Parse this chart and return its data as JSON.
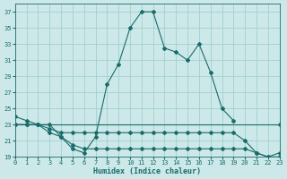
{
  "xlabel": "Humidex (Indice chaleur)",
  "bg_color": "#cce8e8",
  "grid_color": "#99cccc",
  "line_color": "#1a6b6b",
  "ylim": [
    19,
    38
  ],
  "yticks": [
    19,
    21,
    23,
    25,
    27,
    29,
    31,
    33,
    35,
    37
  ],
  "xlim": [
    0,
    23
  ],
  "xticks": [
    0,
    1,
    2,
    3,
    4,
    5,
    6,
    7,
    8,
    9,
    10,
    11,
    12,
    13,
    14,
    15,
    16,
    17,
    18,
    19,
    20,
    21,
    22,
    23
  ],
  "main_x": [
    0,
    1,
    2,
    3,
    4,
    5,
    6,
    7,
    8,
    9,
    10,
    11,
    12,
    13,
    14,
    15,
    16,
    17,
    18,
    19
  ],
  "main_y": [
    24,
    23.5,
    23,
    23,
    21.5,
    20,
    19.5,
    21.5,
    28,
    30.5,
    35,
    37,
    37,
    32.5,
    32,
    31,
    33,
    29.5,
    25,
    23.5
  ],
  "flat1_x": [
    0,
    1,
    2,
    3,
    4,
    5,
    6,
    7,
    8,
    9,
    10,
    11,
    12,
    13,
    14,
    15,
    16,
    17,
    18,
    19,
    20,
    21,
    22,
    23
  ],
  "flat1_y": [
    23,
    23,
    23,
    23,
    23,
    23,
    23,
    23,
    23,
    23,
    23,
    23,
    23,
    23,
    23,
    23,
    23,
    23,
    23,
    23,
    23,
    23,
    23,
    23
  ],
  "flat2_x": [
    0,
    1,
    2,
    3,
    4,
    5,
    6,
    7,
    8,
    9,
    10,
    11,
    12,
    13,
    14,
    15,
    16,
    17,
    18,
    19,
    20,
    21,
    22,
    23
  ],
  "flat2_y": [
    23,
    23,
    23,
    22.5,
    22,
    22,
    22,
    22,
    22,
    22,
    22,
    22,
    22,
    22,
    22,
    22,
    22,
    22,
    22,
    22,
    21,
    19.5,
    19,
    19
  ],
  "flat3_x": [
    0,
    1,
    2,
    3,
    4,
    5,
    6,
    7,
    8,
    9,
    10,
    11,
    12,
    13,
    14,
    15,
    16,
    17,
    18,
    19,
    20,
    21,
    22,
    23
  ],
  "flat3_y": [
    23,
    23,
    23,
    22,
    21.5,
    20.5,
    20,
    20,
    20,
    20,
    20,
    20,
    20,
    20,
    20,
    20,
    20,
    20,
    20,
    20,
    20,
    19.5,
    19,
    19.5
  ],
  "xlabel_fontsize": 6,
  "tick_fontsize": 5
}
